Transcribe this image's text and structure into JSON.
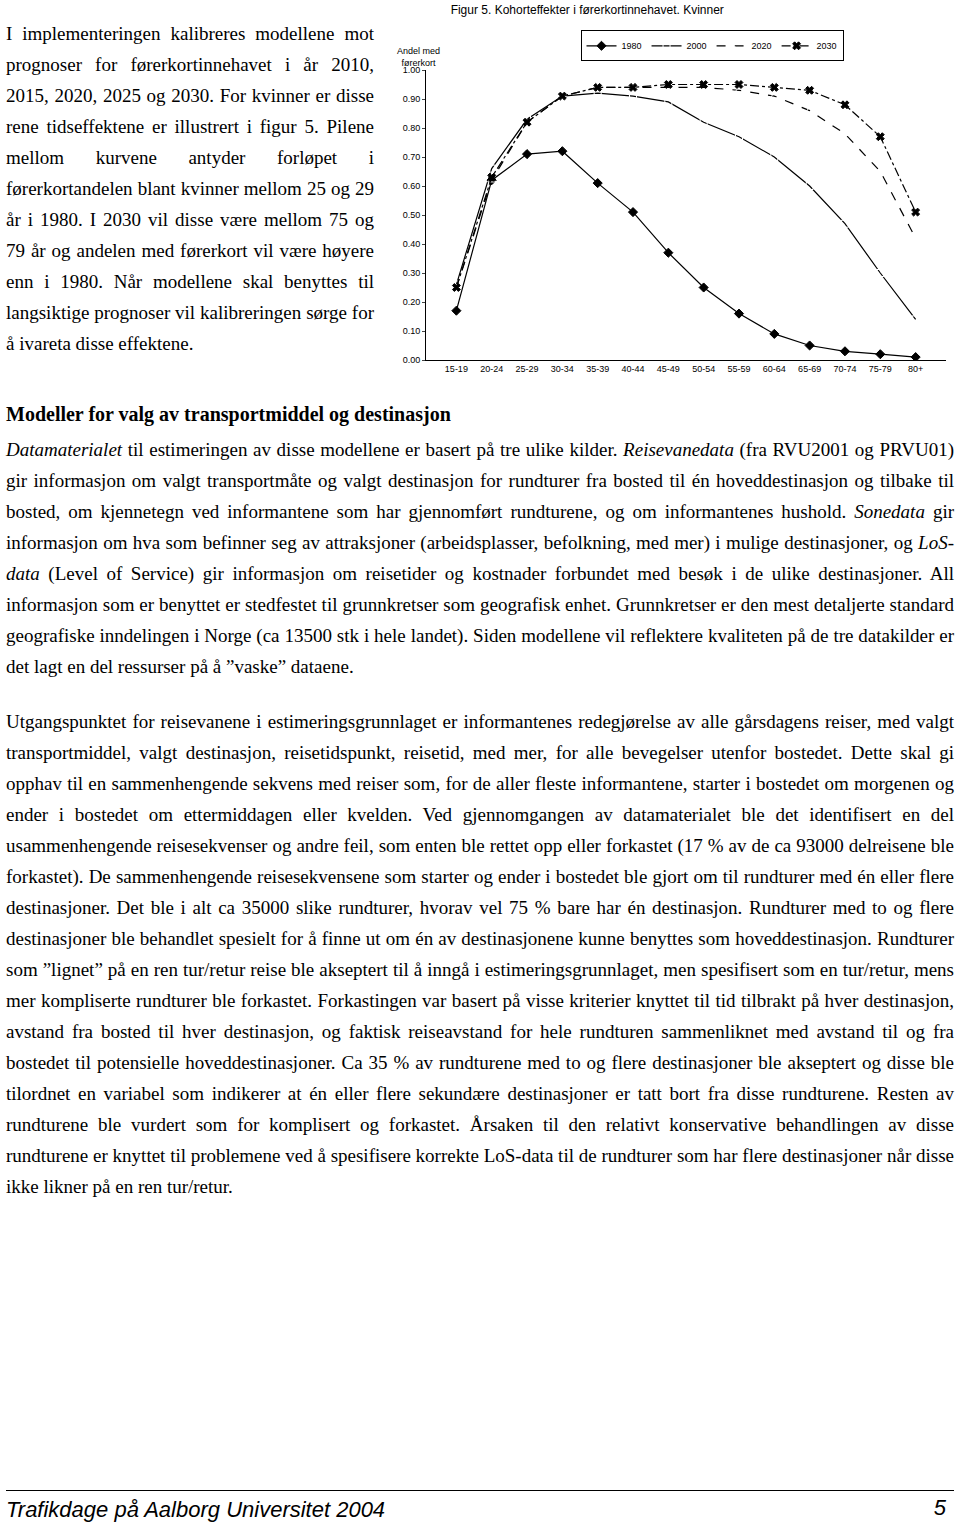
{
  "page": {
    "intro": "I implementeringen kalibreres modellene mot prognoser for førerkortinnehavet i år 2010, 2015, 2020, 2025 og 2030. For kvinner er disse rene tidseffektene er illustrert i figur 5. Pilene mellom kurvene antyder forløpet i førerkortandelen blant kvinner mellom 25 og 29 år i 1980. I 2030 vil disse være mellom 75 og 79 år og andelen med førerkort vil være høyere enn i 1980. Når modellene skal benyttes til langsiktige prognoser vil kalibreringen sørge for å ivareta disse effektene.",
    "heading": "Modeller for valg av transportmiddel og destinasjon",
    "paragraphs": [
      [
        {
          "text": "Datamaterialet",
          "italic": true
        },
        {
          "text": " til estimeringen av disse modellene er basert på tre ulike kilder. "
        },
        {
          "text": "Reisevanedata",
          "italic": true
        },
        {
          "text": " (fra RVU2001 og PRVU01) gir informasjon om valgt transportmåte og valgt destinasjon for rundturer fra bosted til én hoveddestinasjon og tilbake til bosted, om kjennetegn ved informantene som har gjennomført rundturene, og om informantenes hushold. "
        },
        {
          "text": "Sonedata",
          "italic": true
        },
        {
          "text": " gir informasjon om hva som befinner seg av attraksjoner (arbeidsplasser, befolkning, med mer) i mulige destinasjoner, og "
        },
        {
          "text": "LoS-data",
          "italic": true
        },
        {
          "text": " (Level of Service) gir informasjon om reisetider og kostnader forbundet med besøk i de ulike destinasjoner. All informasjon som er benyttet er stedfestet til grunnkretser som geografisk enhet. Grunnkretser er den mest detaljerte standard geografiske inndelingen i Norge (ca 13500 stk i hele landet). Siden modellene vil reflektere kvaliteten på de tre datakilder er det lagt en del ressurser på å ”vaske” dataene."
        }
      ],
      [
        {
          "text": "Utgangspunktet for reisevanene i estimeringsgrunnlaget er informantenes redegjørelse av alle gårsdagens reiser, med valgt transportmiddel, valgt destinasjon, reisetidspunkt, reisetid, med mer, for alle bevegelser utenfor bostedet. Dette skal gi opphav til en sammenhengende sekvens med reiser som, for de aller fleste informantene, starter i bostedet om morgenen og ender i bostedet om ettermiddagen eller kvelden. Ved gjennomgangen av datamaterialet ble det identifisert en del usammenhengende reisesekvenser og andre feil, som enten ble rettet opp eller forkastet (17 % av de ca 93000 delreisene ble forkastet). De sammenhengende reisesekvensene som starter og ender i bostedet ble gjort om til rundturer med én eller flere destinasjoner. Det ble i alt ca 35000 slike rundturer, hvorav vel 75 % bare har én destinasjon. Rundturer med to og flere destinasjoner ble behandlet spesielt for å finne ut om én av destinasjonene kunne benyttes som hoveddestinasjon. Rundturer som ”lignet” på en ren tur/retur reise ble akseptert til å inngå i estimeringsgrunnlaget, men spesifisert som en tur/retur, mens mer kompliserte rundturer ble forkastet. Forkastingen var basert på visse kriterier knyttet til tid tilbrakt på hver destinasjon, avstand fra bosted til hver destinasjon, og faktisk reiseavstand for hele rundturen sammenliknet med avstand til og fra bostedet til potensielle hoveddestinasjoner. Ca 35 % av rundturene med to og flere destinasjoner ble akseptert og disse ble tilordnet en variabel som indikerer at én eller flere sekundære destinasjoner er tatt bort fra disse rundturene. Resten av rundturene ble vurdert som for komplisert og forkastet. Årsaken til den relativt konservative behandlingen av disse rundturene er knyttet til problemene ved å spesifisere korrekte LoS-data til de rundturer som har flere destinasjoner når disse ikke likner på en ren tur/retur."
        }
      ]
    ],
    "footer": {
      "text": "Trafikdage på Aalborg Universitet 2004",
      "page": "5"
    }
  },
  "chart_data": {
    "type": "line",
    "title": "Figur 5. Kohorteffekter i førerkortinnehavet. Kvinner",
    "y_label": "Andel med førerkort",
    "categories": [
      "15-19",
      "20-24",
      "25-29",
      "30-34",
      "35-39",
      "40-44",
      "45-49",
      "50-54",
      "55-59",
      "60-64",
      "65-69",
      "70-74",
      "75-79",
      "80+"
    ],
    "series": [
      {
        "name": "1980",
        "color": "#000000",
        "marker": "diamond",
        "line_style": "solid",
        "values": [
          0.17,
          0.62,
          0.71,
          0.72,
          0.61,
          0.51,
          0.37,
          0.25,
          0.16,
          0.09,
          0.05,
          0.03,
          0.02,
          0.01
        ]
      },
      {
        "name": "2000",
        "color": "#000000",
        "marker": "square-open",
        "line_style": "solid",
        "values": [
          0.26,
          0.66,
          0.83,
          0.91,
          0.92,
          0.91,
          0.89,
          0.82,
          0.77,
          0.7,
          0.6,
          0.47,
          0.3,
          0.14
        ]
      },
      {
        "name": "2020",
        "color": "#000000",
        "marker": "triangle-up-open",
        "line_style": "dash",
        "values": [
          0.25,
          0.62,
          0.82,
          0.91,
          0.94,
          0.94,
          0.94,
          0.94,
          0.93,
          0.91,
          0.86,
          0.78,
          0.65,
          0.42
        ]
      },
      {
        "name": "2030",
        "color": "#000000",
        "marker": "x",
        "line_style": "dashdot",
        "values": [
          0.25,
          0.63,
          0.82,
          0.91,
          0.94,
          0.94,
          0.95,
          0.95,
          0.95,
          0.94,
          0.93,
          0.88,
          0.77,
          0.51
        ]
      }
    ],
    "ylim": [
      0,
      1
    ],
    "yticks": [
      {
        "value": 0,
        "label": "0.00"
      },
      {
        "value": 0.1,
        "label": "0.10"
      },
      {
        "value": 0.2,
        "label": "0.20"
      },
      {
        "value": 0.3,
        "label": "0.30"
      },
      {
        "value": 0.4,
        "label": "0.40"
      },
      {
        "value": 0.5,
        "label": "0.50"
      },
      {
        "value": 0.6,
        "label": "0.60"
      },
      {
        "value": 0.7,
        "label": "0.70"
      },
      {
        "value": 0.8,
        "label": "0.80"
      },
      {
        "value": 0.9,
        "label": "0.90"
      },
      {
        "value": 1,
        "label": "1.00"
      }
    ],
    "grid": false,
    "legend": "top"
  }
}
